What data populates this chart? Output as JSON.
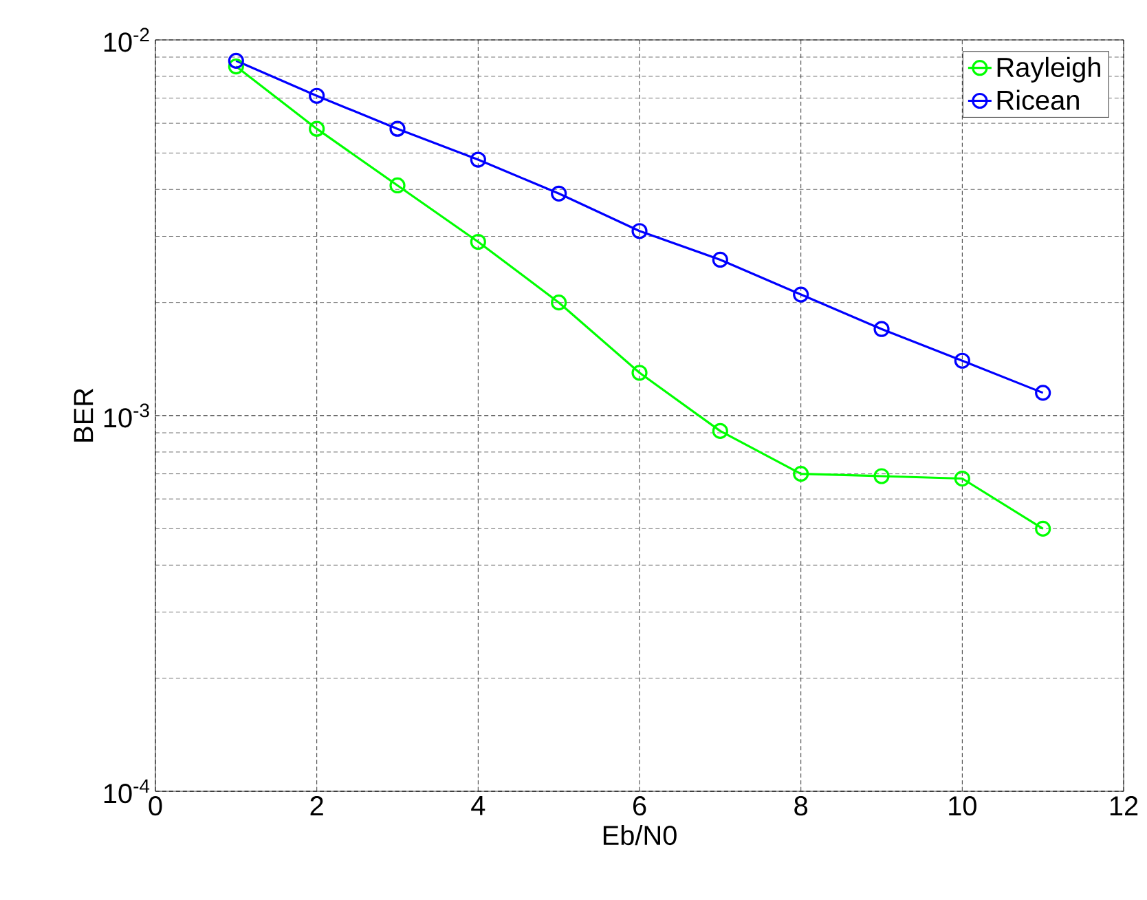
{
  "chart_data": {
    "type": "line",
    "xlabel": "Eb/N0",
    "ylabel": "BER",
    "x": [
      1,
      2,
      3,
      4,
      5,
      6,
      7,
      8,
      9,
      10,
      11
    ],
    "series": [
      {
        "name": "Rayleigh",
        "color": "#00ff00",
        "values": [
          0.0085,
          0.0058,
          0.0041,
          0.0029,
          0.002,
          0.0013,
          0.00091,
          0.0007,
          0.00069,
          0.00068,
          0.0005
        ]
      },
      {
        "name": "Ricean",
        "color": "#0000ff",
        "values": [
          0.0088,
          0.0071,
          0.0058,
          0.0048,
          0.0039,
          0.0031,
          0.0026,
          0.0021,
          0.0017,
          0.0014,
          0.00115
        ]
      }
    ],
    "xlim": [
      0,
      12
    ],
    "xticks": [
      0,
      2,
      4,
      6,
      8,
      10,
      12
    ],
    "ylim": [
      0.0001,
      0.01
    ],
    "yticks": [
      {
        "value": 0.0001,
        "label": "10$^{-4}$"
      },
      {
        "value": 0.001,
        "label": "10$^{-3}$"
      },
      {
        "value": 0.01,
        "label": "10$^{-2}$"
      }
    ],
    "log": "y",
    "grid": true,
    "legend": "top right",
    "marker": "circle",
    "line_style": "solid"
  }
}
